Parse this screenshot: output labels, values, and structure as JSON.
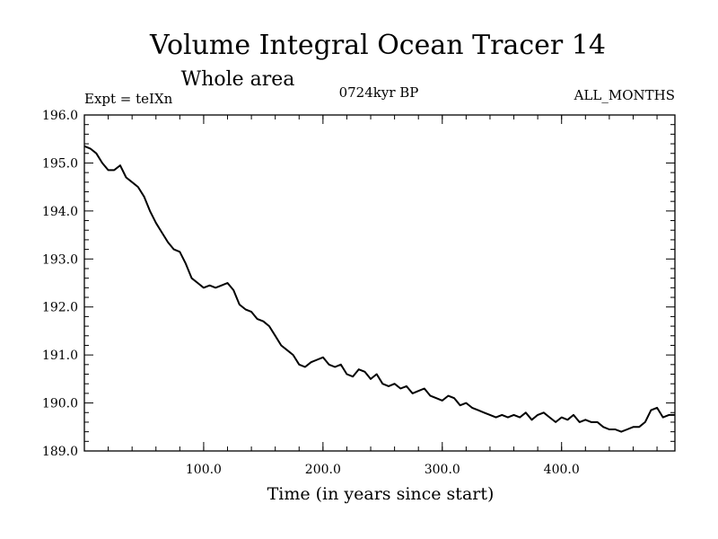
{
  "chart_data": {
    "type": "line",
    "title": "Volume Integral Ocean Tracer 14",
    "subtitle": "Whole area",
    "annotations": {
      "left": "Expt = teIXn",
      "center": "0724kyr BP",
      "right": "ALL_MONTHS"
    },
    "xlabel": "Time (in years since start)",
    "ylabel": "",
    "xlim": [
      0,
      495
    ],
    "ylim": [
      189.0,
      196.0
    ],
    "x_ticks": [
      {
        "value": 100,
        "label": "100.0"
      },
      {
        "value": 200,
        "label": "200.0"
      },
      {
        "value": 300,
        "label": "300.0"
      },
      {
        "value": 400,
        "label": "400.0"
      }
    ],
    "y_ticks": [
      {
        "value": 189.0,
        "label": "189.0"
      },
      {
        "value": 190.0,
        "label": "190.0"
      },
      {
        "value": 191.0,
        "label": "191.0"
      },
      {
        "value": 192.0,
        "label": "192.0"
      },
      {
        "value": 193.0,
        "label": "193.0"
      },
      {
        "value": 194.0,
        "label": "194.0"
      },
      {
        "value": 195.0,
        "label": "195.0"
      },
      {
        "value": 196.0,
        "label": "196.0"
      }
    ],
    "grid": false,
    "series": [
      {
        "color": "#000000",
        "x": [
          0,
          5,
          10,
          15,
          20,
          25,
          30,
          35,
          40,
          45,
          50,
          55,
          60,
          65,
          70,
          75,
          80,
          85,
          90,
          95,
          100,
          105,
          110,
          115,
          120,
          125,
          130,
          135,
          140,
          145,
          150,
          155,
          160,
          165,
          170,
          175,
          180,
          185,
          190,
          195,
          200,
          205,
          210,
          215,
          220,
          225,
          230,
          235,
          240,
          245,
          250,
          255,
          260,
          265,
          270,
          275,
          280,
          285,
          290,
          295,
          300,
          305,
          310,
          315,
          320,
          325,
          330,
          335,
          340,
          345,
          350,
          355,
          360,
          365,
          370,
          375,
          380,
          385,
          390,
          395,
          400,
          405,
          410,
          415,
          420,
          425,
          430,
          435,
          440,
          445,
          450,
          455,
          460,
          465,
          470,
          475,
          480,
          485,
          490,
          495
        ],
        "values": [
          195.35,
          195.3,
          195.2,
          195.0,
          194.85,
          194.85,
          194.95,
          194.7,
          194.6,
          194.5,
          194.3,
          194.0,
          193.75,
          193.55,
          193.35,
          193.2,
          193.15,
          192.9,
          192.6,
          192.5,
          192.4,
          192.45,
          192.4,
          192.45,
          192.5,
          192.35,
          192.05,
          191.95,
          191.9,
          191.75,
          191.7,
          191.6,
          191.4,
          191.2,
          191.1,
          191.0,
          190.8,
          190.75,
          190.85,
          190.9,
          190.95,
          190.8,
          190.75,
          190.8,
          190.6,
          190.55,
          190.7,
          190.65,
          190.5,
          190.6,
          190.4,
          190.35,
          190.4,
          190.3,
          190.35,
          190.2,
          190.25,
          190.3,
          190.15,
          190.1,
          190.05,
          190.15,
          190.1,
          189.95,
          190.0,
          189.9,
          189.85,
          189.8,
          189.75,
          189.7,
          189.75,
          189.7,
          189.75,
          189.7,
          189.8,
          189.65,
          189.75,
          189.8,
          189.7,
          189.6,
          189.7,
          189.65,
          189.75,
          189.6,
          189.65,
          189.6,
          189.6,
          189.5,
          189.45,
          189.45,
          189.4,
          189.45,
          189.5,
          189.5,
          189.6,
          189.85,
          189.9,
          189.7,
          189.75,
          189.75
        ]
      }
    ]
  }
}
